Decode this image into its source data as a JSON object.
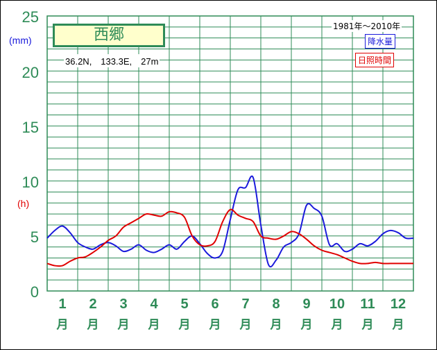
{
  "chart_data": {
    "type": "line",
    "station": "西郷",
    "location": "36.2N,　133.3E,　27m",
    "period": "1981年〜2010年",
    "y_units": {
      "left_rain": "(mm)",
      "left_sun": "(h)"
    },
    "y_ticks": [
      "25",
      "20",
      "15",
      "10",
      "5",
      "0"
    ],
    "ylim": [
      0,
      25
    ],
    "grid": true,
    "legend_placement": "top-right",
    "months": [
      {
        "num": "1",
        "kanji": "月"
      },
      {
        "num": "2",
        "kanji": "月"
      },
      {
        "num": "3",
        "kanji": "月"
      },
      {
        "num": "4",
        "kanji": "月"
      },
      {
        "num": "5",
        "kanji": "月"
      },
      {
        "num": "6",
        "kanji": "月"
      },
      {
        "num": "7",
        "kanji": "月"
      },
      {
        "num": "8",
        "kanji": "月"
      },
      {
        "num": "9",
        "kanji": "月"
      },
      {
        "num": "10",
        "kanji": "月"
      },
      {
        "num": "11",
        "kanji": "月"
      },
      {
        "num": "12",
        "kanji": "月"
      }
    ],
    "x_half_month": [
      0,
      0.5,
      1,
      1.5,
      2,
      2.5,
      3,
      3.5,
      4,
      4.5,
      5,
      5.5,
      6,
      6.5,
      7,
      7.5,
      8,
      8.5,
      9,
      9.5,
      10,
      10.5,
      11,
      11.5,
      12,
      12.5,
      13,
      13.5,
      14,
      14.5,
      15,
      15.5,
      16,
      16.5,
      17,
      17.5,
      18,
      18.5,
      19,
      19.5,
      20,
      20.5,
      21,
      21.5,
      22,
      22.5,
      23,
      23.5,
      24
    ],
    "series": [
      {
        "name": "降水量",
        "color": "#1a1adb",
        "values": [
          4.8,
          5.5,
          5.9,
          5.3,
          4.4,
          4.0,
          3.8,
          4.2,
          4.4,
          4.1,
          3.6,
          3.8,
          4.2,
          3.7,
          3.5,
          3.8,
          4.2,
          3.8,
          4.5,
          5.0,
          4.3,
          3.4,
          3.0,
          3.6,
          6.5,
          9.2,
          9.4,
          10.3,
          6.0,
          2.4,
          2.8,
          4.0,
          4.4,
          5.2,
          7.8,
          7.5,
          6.8,
          4.2,
          4.3,
          3.6,
          3.8,
          4.3,
          4.1,
          4.5,
          5.2,
          5.5,
          5.3,
          4.8,
          4.8
        ]
      },
      {
        "name": "日照時間",
        "color": "#e00000",
        "values": [
          2.5,
          2.3,
          2.3,
          2.7,
          3.0,
          3.1,
          3.5,
          4.0,
          4.6,
          5.0,
          5.8,
          6.2,
          6.6,
          7.0,
          6.9,
          6.8,
          7.2,
          7.1,
          6.7,
          5.0,
          4.2,
          4.1,
          4.5,
          6.3,
          7.4,
          6.9,
          6.6,
          6.3,
          5.0,
          4.8,
          4.7,
          5.0,
          5.4,
          5.2,
          4.7,
          4.1,
          3.7,
          3.5,
          3.3,
          3.0,
          2.7,
          2.5,
          2.5,
          2.6,
          2.5,
          2.5,
          2.5,
          2.5,
          2.5
        ]
      }
    ]
  }
}
